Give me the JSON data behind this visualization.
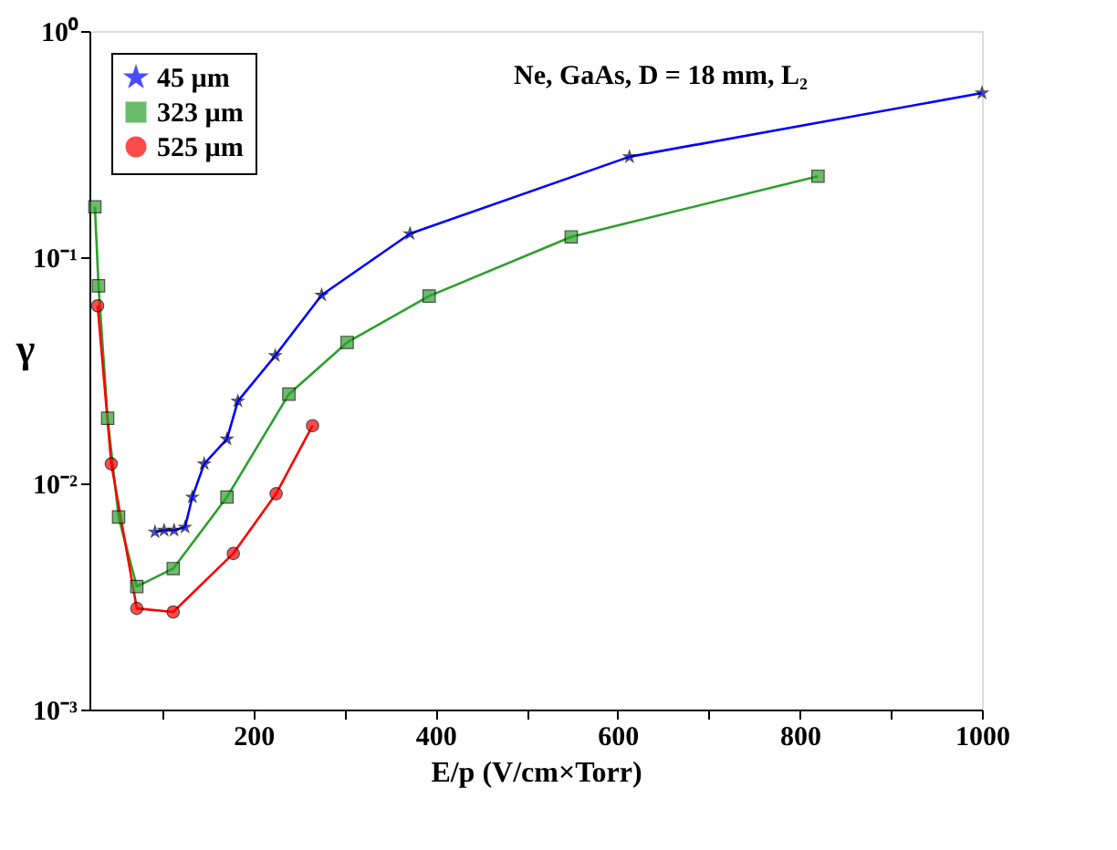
{
  "chart_data": {
    "type": "line",
    "xlabel": "E/p (V/cm×Torr)",
    "ylabel": "γ",
    "log": "y",
    "annotations": [
      "Ne, GaAs, D = 18 mm, L₂"
    ],
    "xlim": [
      20,
      1000
    ],
    "ylim": [
      0.001,
      1
    ],
    "xticks": [
      {
        "value": 100,
        "label": null
      },
      200,
      {
        "value": 300,
        "label": null
      },
      400,
      {
        "value": 500,
        "label": null
      },
      600,
      {
        "value": 700,
        "label": null
      },
      800,
      {
        "value": 900,
        "label": null
      },
      1000
    ],
    "yticks": [
      {
        "value": 0.001,
        "label": "10⁻³"
      },
      {
        "value": 0.01,
        "label": "10⁻²"
      },
      {
        "value": 0.1,
        "label": "10⁻¹"
      },
      {
        "value": 1,
        "label": "10⁰"
      }
    ],
    "grid": false,
    "legend": "top left",
    "line_style": "solid",
    "series": [
      {
        "name": "45 µm",
        "color": "#0000ff",
        "marker": "star",
        "x": [
          92,
          102,
          113,
          125,
          133,
          146,
          171,
          183,
          224,
          275,
          372,
          613,
          1000
        ],
        "values": [
          0.0061,
          0.0062,
          0.0062,
          0.0064,
          0.0087,
          0.0122,
          0.0157,
          0.0231,
          0.0367,
          0.068,
          0.127,
          0.278,
          0.532
        ]
      },
      {
        "name": "323 µm",
        "color": "#2ca02c",
        "marker": "square",
        "x": [
          26,
          30,
          40,
          52,
          72,
          112,
          171,
          239,
          303,
          393,
          549,
          820
        ],
        "values": [
          0.167,
          0.0747,
          0.0194,
          0.0071,
          0.0035,
          0.0042,
          0.0087,
          0.0248,
          0.042,
          0.0673,
          0.123,
          0.228
        ]
      },
      {
        "name": "525 µm",
        "color": "#ff0000",
        "marker": "circle",
        "x": [
          29,
          44,
          72,
          112,
          178,
          225,
          265
        ],
        "values": [
          0.061,
          0.0122,
          0.0028,
          0.0027,
          0.0049,
          0.009,
          0.018
        ]
      }
    ]
  }
}
